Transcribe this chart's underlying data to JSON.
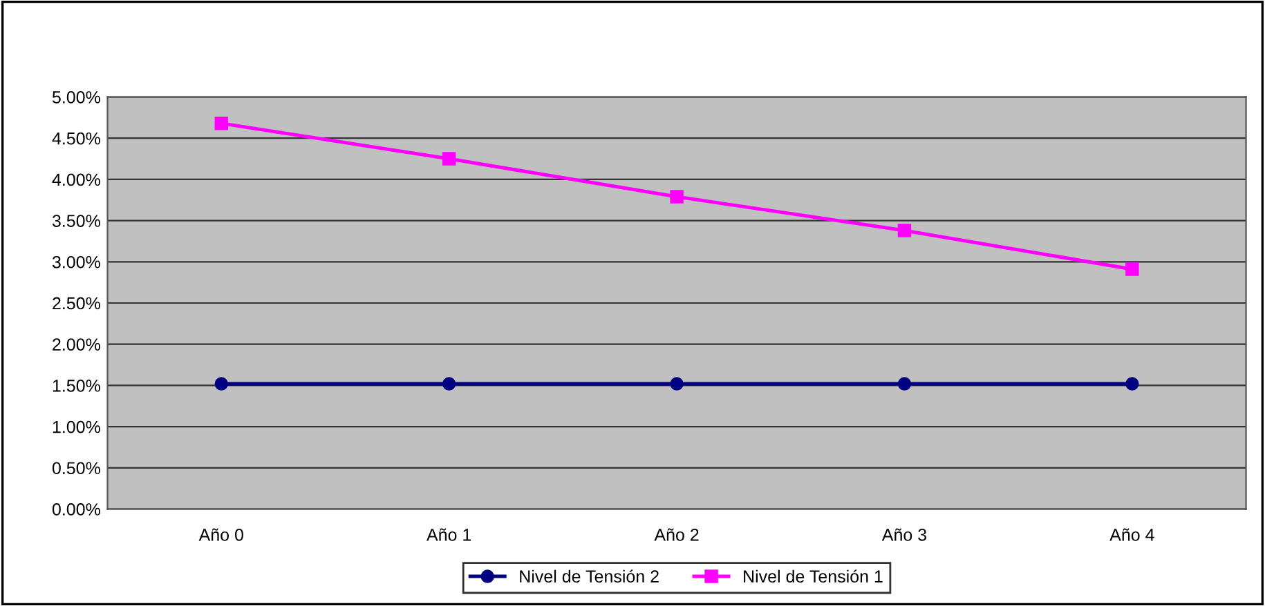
{
  "chart_data": {
    "type": "line",
    "categories": [
      "Año 0",
      "Año 1",
      "Año 2",
      "Año 3",
      "Año 4"
    ],
    "series": [
      {
        "name": "Nivel de Tensión 2",
        "color": "#000080",
        "marker": "circle",
        "values": [
          1.52,
          1.52,
          1.52,
          1.52,
          1.52
        ]
      },
      {
        "name": "Nivel de Tensión 1",
        "color": "#ff00ff",
        "marker": "square",
        "values": [
          4.68,
          4.25,
          3.79,
          3.38,
          2.91
        ]
      }
    ],
    "ylim": [
      0,
      5
    ],
    "yticks": [
      {
        "value": 0,
        "label": "0.00%"
      },
      {
        "value": 0.5,
        "label": "0.50%"
      },
      {
        "value": 1,
        "label": "1.00%"
      },
      {
        "value": 1.5,
        "label": "1.50%"
      },
      {
        "value": 2,
        "label": "2.00%"
      },
      {
        "value": 2.5,
        "label": "2.50%"
      },
      {
        "value": 3,
        "label": "3.00%"
      },
      {
        "value": 3.5,
        "label": "3.50%"
      },
      {
        "value": 4,
        "label": "4.00%"
      },
      {
        "value": 4.5,
        "label": "4.50%"
      },
      {
        "value": 5,
        "label": "5.00%"
      }
    ],
    "grid": "y",
    "legend": "bottom",
    "line_style": "solid"
  }
}
